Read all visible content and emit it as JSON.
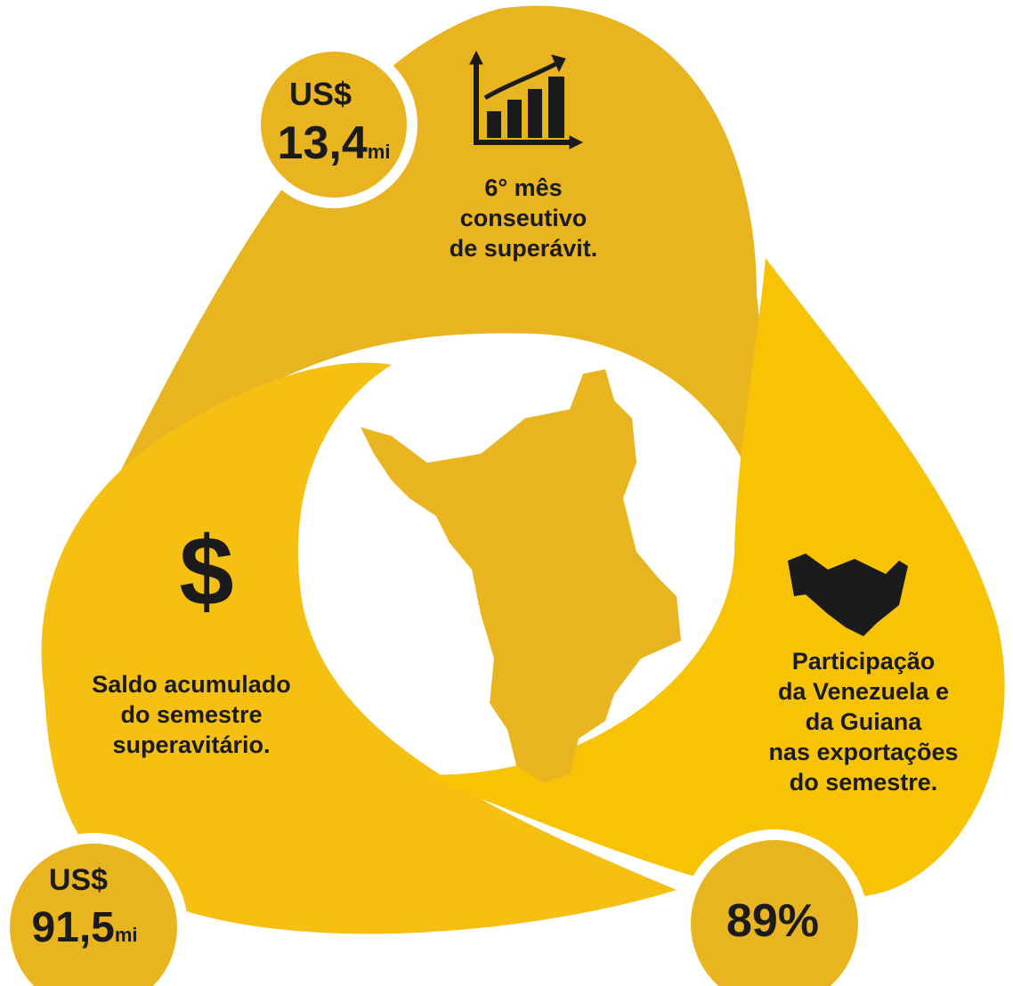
{
  "panels": [
    {
      "badge": {
        "currency": "US$",
        "amount": "13,4",
        "unit": "mi"
      },
      "caption": [
        "6° mês",
        "conseutivo",
        "de superávit."
      ]
    },
    {
      "badge": {
        "currency": "US$",
        "amount": "91,5",
        "unit": "mi"
      },
      "caption": [
        "Saldo acumulado",
        "do semestre",
        "superavitário."
      ]
    },
    {
      "badge": {
        "amount": "89%"
      },
      "caption": [
        "Participação",
        "da Venezuela e",
        "da Guiana",
        "nas exportações",
        "do semestre."
      ]
    }
  ]
}
